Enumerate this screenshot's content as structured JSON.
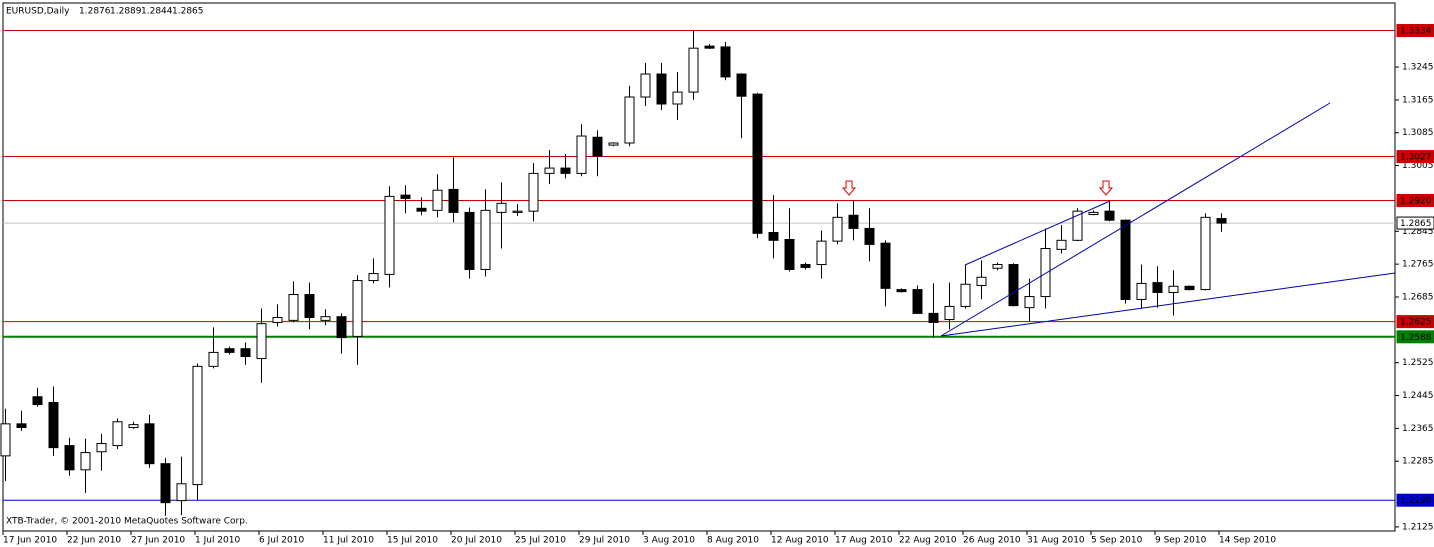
{
  "chart_data": {
    "type": "candlestick",
    "title": "EURUSD,Daily",
    "footer": "XTB-Trader, © 2001-2010 MetaQuotes Software Corp.",
    "categories": [
      "17 Jun 2010",
      null,
      null,
      null,
      "22 Jun 2010",
      null,
      null,
      null,
      "27 Jun 2010",
      null,
      null,
      null,
      "1 Jul 2010",
      null,
      null,
      null,
      "6 Jul 2010",
      null,
      null,
      null,
      "11 Jul 2010",
      null,
      null,
      null,
      "15 Jul 2010",
      null,
      null,
      null,
      "20 Jul 2010",
      null,
      null,
      null,
      "25 Jul 2010",
      null,
      null,
      null,
      "29 Jul 2010",
      null,
      null,
      null,
      "3 Aug 2010",
      null,
      null,
      null,
      "8 Aug 2010",
      null,
      null,
      null,
      "12 Aug 2010",
      null,
      null,
      null,
      "17 Aug 2010",
      null,
      null,
      null,
      "22 Aug 2010",
      null,
      null,
      null,
      "26 Aug 2010",
      null,
      null,
      null,
      "31 Aug 2010",
      null,
      null,
      null,
      "5 Sep 2010",
      null,
      null,
      null,
      "9 Sep 2010",
      null,
      null,
      null,
      "14 Sep 2010"
    ],
    "open": [
      1.2298,
      1.2376,
      1.2442,
      1.2428,
      1.2323,
      1.2264,
      1.2308,
      1.2323,
      1.2367,
      1.2376,
      1.2279,
      1.2189,
      1.2228,
      1.2516,
      1.2559,
      1.2559,
      1.2535,
      1.2623,
      1.2628,
      1.2691,
      1.2628,
      1.2637,
      1.2589,
      1.2725,
      1.274,
      1.2933,
      1.2901,
      1.2896,
      1.2947,
      1.2891,
      1.2752,
      1.2891,
      1.2891,
      1.2894,
      1.2986,
      1.2999,
      1.2986,
      1.3074,
      1.3055,
      1.306,
      1.3172,
      1.3228,
      1.3155,
      1.3184,
      1.3296,
      1.3294,
      1.3228,
      1.3179,
      1.2842,
      1.2825,
      1.2764,
      1.2764,
      1.2821,
      1.2884,
      1.2852,
      1.2816,
      1.2703,
      1.2703,
      1.2645,
      1.263,
      1.2662,
      1.2713,
      1.2755,
      1.2764,
      1.2659,
      1.2686,
      1.2801,
      1.2823,
      1.2886,
      1.2894,
      1.2872,
      1.2679,
      1.272,
      1.2696,
      1.2711,
      1.2703,
      1.2876
    ],
    "high": [
      1.2413,
      1.2408,
      1.2464,
      1.2467,
      1.2342,
      1.234,
      1.2352,
      1.2389,
      1.2381,
      1.2398,
      1.2293,
      1.2296,
      1.2523,
      1.2611,
      1.2564,
      1.2574,
      1.2657,
      1.2667,
      1.2723,
      1.272,
      1.2655,
      1.2645,
      1.2738,
      1.2779,
      1.2955,
      1.2957,
      1.2928,
      1.2984,
      1.3025,
      1.2903,
      1.2947,
      1.2964,
      1.2911,
      1.3011,
      1.3043,
      1.3033,
      1.3106,
      1.3091,
      1.3062,
      1.3199,
      1.3255,
      1.3255,
      1.3233,
      1.3333,
      1.3301,
      1.3306,
      1.323,
      1.3182,
      1.2933,
      1.2901,
      1.2769,
      1.2847,
      1.2913,
      1.292,
      1.2901,
      1.2823,
      1.2706,
      1.2713,
      1.2718,
      1.272,
      1.2764,
      1.2774,
      1.2769,
      1.2767,
      1.273,
      1.2852,
      1.286,
      1.2901,
      1.2896,
      1.2918,
      1.2874,
      1.2764,
      1.276,
      1.275,
      1.2713,
      1.2889,
      1.2889
    ],
    "low": [
      1.2237,
      1.2359,
      1.2418,
      1.2298,
      1.225,
      1.2208,
      1.2262,
      1.2315,
      1.2364,
      1.2269,
      1.2152,
      1.2154,
      1.2191,
      1.2511,
      1.2545,
      1.252,
      1.2476,
      1.2613,
      1.2623,
      1.2606,
      1.2616,
      1.2547,
      1.252,
      1.2718,
      1.2708,
      1.2889,
      1.2884,
      1.2879,
      1.2867,
      1.273,
      1.2735,
      1.2803,
      1.2882,
      1.2869,
      1.296,
      1.2974,
      1.2979,
      1.2979,
      1.3052,
      1.3052,
      1.315,
      1.314,
      1.3116,
      1.3165,
      1.3289,
      1.3213,
      1.3072,
      1.2828,
      1.2779,
      1.2747,
      1.2752,
      1.273,
      1.2813,
      1.2823,
      1.2772,
      1.2662,
      1.2696,
      1.2645,
      1.2586,
      1.2606,
      1.2657,
      1.2679,
      1.275,
      1.2662,
      1.2625,
      1.2657,
      1.2791,
      1.2821,
      1.2884,
      1.2869,
      1.2669,
      1.2657,
      1.2659,
      1.264,
      1.2701,
      1.2701,
      1.2844
    ],
    "close": [
      1.2376,
      1.2367,
      1.2423,
      1.2318,
      1.2264,
      1.2306,
      1.2328,
      1.2381,
      1.2374,
      1.2279,
      1.2184,
      1.223,
      1.2516,
      1.255,
      1.255,
      1.254,
      1.262,
      1.2635,
      1.2691,
      1.2635,
      1.2637,
      1.2586,
      1.2725,
      1.2742,
      1.293,
      1.2925,
      1.2894,
      1.2945,
      1.2891,
      1.2752,
      1.2896,
      1.2913,
      1.2894,
      1.2986,
      1.2999,
      1.2986,
      1.3077,
      1.3028,
      1.306,
      1.3172,
      1.3228,
      1.3155,
      1.3184,
      1.3291,
      1.3291,
      1.3221,
      1.3174,
      1.284,
      1.2823,
      1.2752,
      1.2757,
      1.2821,
      1.2879,
      1.2852,
      1.2813,
      1.2706,
      1.2698,
      1.2645,
      1.2623,
      1.2662,
      1.2716,
      1.2733,
      1.2764,
      1.2664,
      1.2686,
      1.2803,
      1.2823,
      1.2894,
      1.2891,
      1.2872,
      1.2679,
      1.2718,
      1.2696,
      1.2711,
      1.2703,
      1.2879,
      1.2865
    ],
    "up_color": "#ffffff",
    "down_color": "#000000",
    "wick_color": "#000000",
    "ylim": [
      1.2115,
      1.3401
    ],
    "yticks": [
      1.3245,
      1.3165,
      1.3085,
      1.3005,
      1.2845,
      1.2765,
      1.2685,
      1.2525,
      1.2445,
      1.2365,
      1.2285,
      1.2125
    ],
    "levels": [
      {
        "value": 1.3334,
        "color": "#cc0000",
        "box_color": "#cc0000",
        "text_color": "#ffffff"
      },
      {
        "value": 1.3027,
        "color": "#cc0000",
        "box_color": "#cc0000",
        "text_color": "#ffffff"
      },
      {
        "value": 1.292,
        "color": "#cc0000",
        "box_color": "#cc0000",
        "text_color": "#ffffff",
        "label": "1.2920"
      },
      {
        "value": 1.2865,
        "color": "#c0c0c0",
        "box_color": "#ffffff",
        "text_color": "#000000"
      },
      {
        "value": 1.2625,
        "color": "#cc0000",
        "box_color": "#cc0000",
        "text_color": "#ffffff"
      },
      {
        "value": 1.2588,
        "color": "#008000",
        "box_color": "#008000",
        "text_color": "#ffffff",
        "line_width": 2
      },
      {
        "value": 1.219,
        "color": "#0000cc",
        "box_color": "#0000cc",
        "text_color": "#ffffff",
        "label": "1.2190"
      }
    ]
  }
}
